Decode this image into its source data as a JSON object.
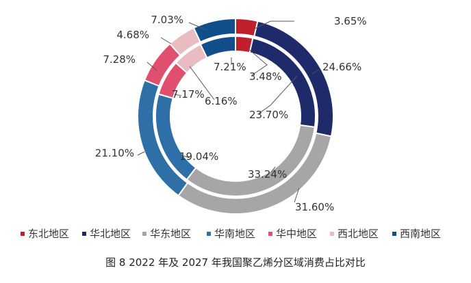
{
  "chart_data": {
    "type": "pie",
    "subtype": "nested-donut",
    "categories": [
      "东北地区",
      "华北地区",
      "华东地区",
      "华南地区",
      "华中地区",
      "西北地区",
      "西南地区"
    ],
    "colors": [
      "#c0202c",
      "#1f2a6b",
      "#a6a6a6",
      "#2e6fa8",
      "#e0506e",
      "#e8bcc0",
      "#114f8c"
    ],
    "series": [
      {
        "ring": "outer",
        "values": [
          3.65,
          24.66,
          31.6,
          21.1,
          7.28,
          4.68,
          7.03
        ],
        "labels": [
          "3.65%",
          "24.66%",
          "31.60%",
          "21.10%",
          "7.28%",
          "4.68%",
          "7.03%"
        ]
      },
      {
        "ring": "inner",
        "values": [
          3.48,
          23.7,
          33.24,
          19.04,
          7.17,
          6.16,
          7.21
        ],
        "labels": [
          "3.48%",
          "23.70%",
          "33.24%",
          "19.04%",
          "7.17%",
          "6.16%",
          "7.21%"
        ]
      }
    ],
    "legend_position": "bottom"
  },
  "caption": "图 8  2022 年及 2027 年我国聚乙烯分区域消费占比对比"
}
